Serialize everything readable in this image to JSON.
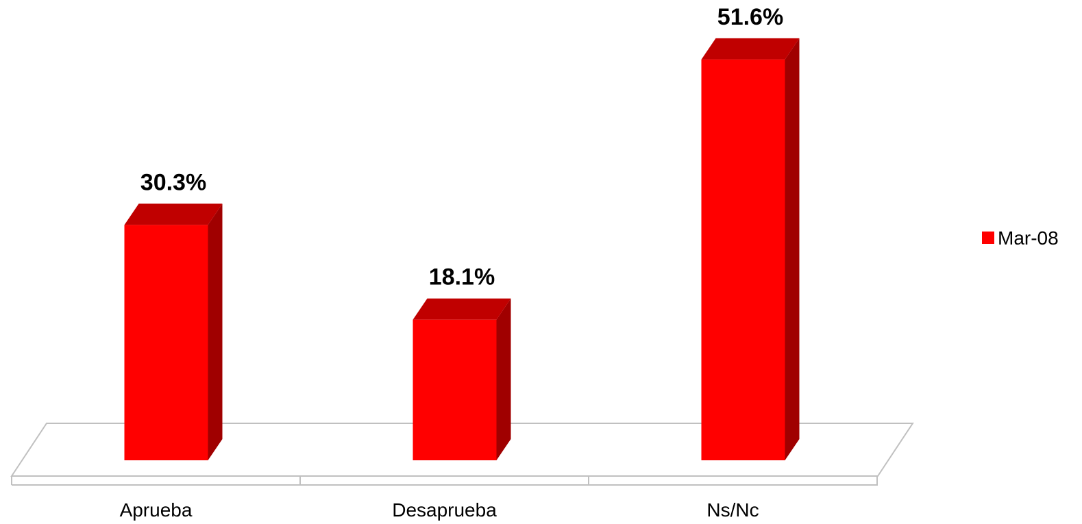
{
  "chart_data": {
    "type": "bar",
    "style": "3d-column",
    "categories": [
      "Aprueba",
      "Desaprueba",
      "Ns/Nc"
    ],
    "series": [
      {
        "name": "Mar-08",
        "values": [
          30.3,
          18.1,
          51.6
        ],
        "value_labels": [
          "30.3%",
          "18.1%",
          "51.6%"
        ]
      }
    ],
    "ylim": [
      0,
      55
    ],
    "grid": false,
    "legend": {
      "position": "right"
    },
    "colors": {
      "bar_front": "#ff0000",
      "bar_top": "#c00000",
      "bar_side": "#a00000",
      "floor_line": "#c0c0c0"
    }
  }
}
